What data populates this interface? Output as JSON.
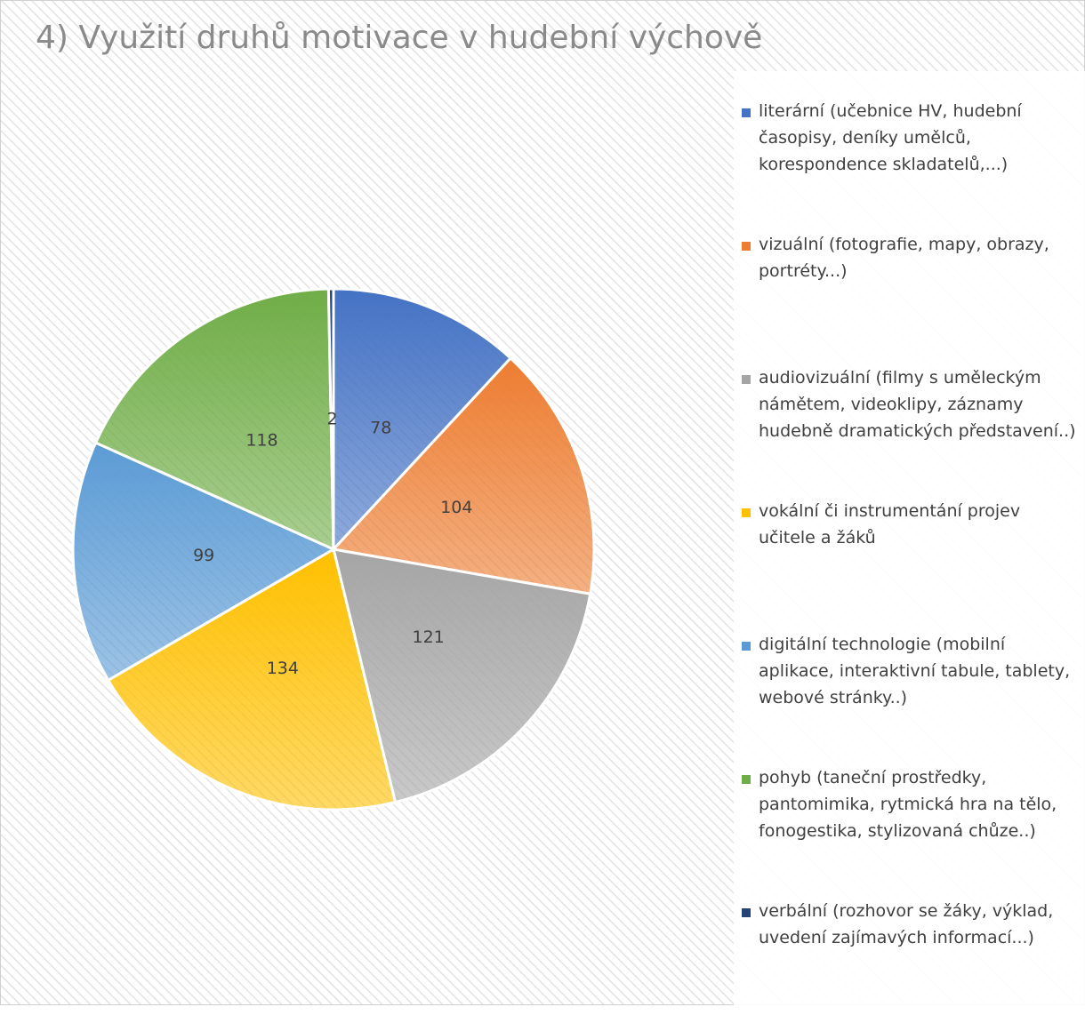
{
  "chart_data": {
    "type": "pie",
    "title": "4) Využití druhů motivace v hudební výchově",
    "categories": [
      "literární (učebnice HV, hudební časopisy, deníky umělců, korespondence skladatelů,...)",
      "vizuální (fotografie, mapy, obrazy, portréty...)",
      "audiovizuální (filmy s uměleckým námětem, videoklipy, záznamy hudebně dramatických představení..)",
      "vokální či instrumentání projev učitele a žáků",
      "digitální technologie (mobilní aplikace, interaktivní tabule, tablety, webové stránky..)",
      "pohyb (taneční prostředky, pantomimika, rytmická hra na tělo, fonogestika, stylizovaná chůze..)",
      "verbální (rozhovor se žáky, výklad, uvedení zajímavých informací...)"
    ],
    "values": [
      78,
      104,
      121,
      134,
      99,
      118,
      2
    ],
    "colors": [
      "#4472c4",
      "#ed7d31",
      "#a5a5a5",
      "#ffc000",
      "#5b9bd5",
      "#70ad47",
      "#264478"
    ],
    "legend": "right"
  }
}
